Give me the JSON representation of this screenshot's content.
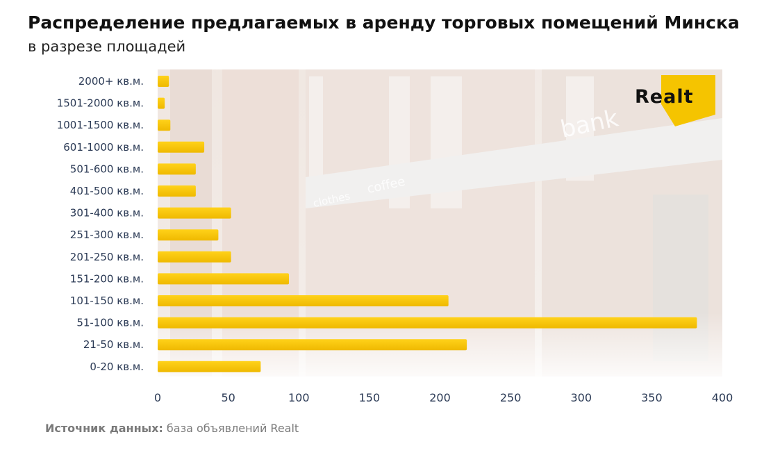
{
  "header": {
    "title": "Распределение предлагаемых в аренду торговых помещений Минска",
    "subtitle": "в разрезе площадей"
  },
  "logo": {
    "text": "Realt",
    "color": "#f5c400"
  },
  "background": {
    "signs": [
      "bank",
      "coffee",
      "clothes"
    ]
  },
  "source": {
    "label": "Источник данных:",
    "text": " база объявлений Realt"
  },
  "colors": {
    "bar": "#f5c400",
    "bar_shade": "#e0a800",
    "axis_text": "#2b3a55"
  },
  "chart_data": {
    "type": "bar",
    "orientation": "horizontal",
    "categories": [
      "2000+ кв.м.",
      "1501-2000 кв.м.",
      "1001-1500 кв.м.",
      "601-1000 кв.м.",
      "501-600 кв.м.",
      "401-500 кв.м.",
      "301-400 кв.м.",
      "251-300 кв.м.",
      "201-250 кв.м.",
      "151-200 кв.м.",
      "101-150 кв.м.",
      "51-100 кв.м.",
      "21-50 кв.м.",
      "0-20 кв.м."
    ],
    "values": [
      8,
      5,
      9,
      33,
      27,
      27,
      52,
      43,
      52,
      93,
      206,
      382,
      219,
      73
    ],
    "title": "Распределение предлагаемых в аренду торговых помещений Минска",
    "subtitle": "в разрезе площадей",
    "xlabel": "",
    "ylabel": "",
    "xlim": [
      0,
      400
    ],
    "xticks": [
      0,
      50,
      100,
      150,
      200,
      250,
      300,
      350,
      400
    ],
    "grid": false,
    "legend": "none"
  }
}
